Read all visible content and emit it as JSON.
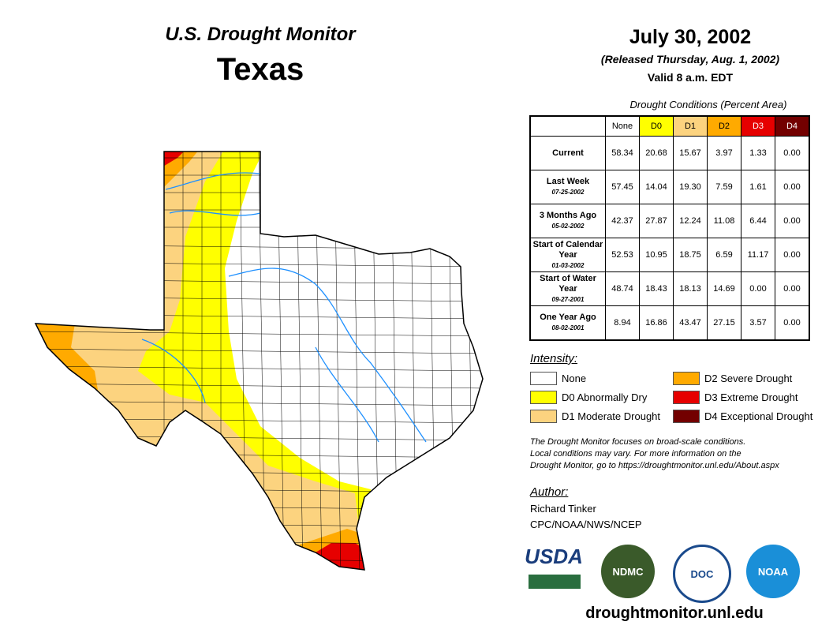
{
  "header": {
    "title": "U.S. Drought Monitor",
    "region": "Texas",
    "date": "July 30, 2002",
    "released": "(Released Thursday, Aug. 1, 2002)",
    "valid": "Valid 8 a.m. EDT"
  },
  "table": {
    "caption": "Drought Conditions (Percent Area)",
    "columns": [
      "None",
      "D0",
      "D1",
      "D2",
      "D3",
      "D4"
    ],
    "rows": [
      {
        "label": "Current",
        "date": "",
        "values": [
          "58.34",
          "20.68",
          "15.67",
          "3.97",
          "1.33",
          "0.00"
        ]
      },
      {
        "label": "Last Week",
        "date": "07-25-2002",
        "values": [
          "57.45",
          "14.04",
          "19.30",
          "7.59",
          "1.61",
          "0.00"
        ]
      },
      {
        "label": "3 Months Ago",
        "date": "05-02-2002",
        "values": [
          "42.37",
          "27.87",
          "12.24",
          "11.08",
          "6.44",
          "0.00"
        ]
      },
      {
        "label": "Start of Calendar Year",
        "date": "01-03-2002",
        "values": [
          "52.53",
          "10.95",
          "18.75",
          "6.59",
          "11.17",
          "0.00"
        ]
      },
      {
        "label": "Start of Water Year",
        "date": "09-27-2001",
        "values": [
          "48.74",
          "18.43",
          "18.13",
          "14.69",
          "0.00",
          "0.00"
        ]
      },
      {
        "label": "One Year Ago",
        "date": "08-02-2001",
        "values": [
          "8.94",
          "16.86",
          "43.47",
          "27.15",
          "3.57",
          "0.00"
        ]
      }
    ]
  },
  "legend": {
    "title": "Intensity:",
    "items": [
      {
        "label": "None",
        "color": "#ffffff"
      },
      {
        "label": "D0 Abnormally Dry",
        "color": "#ffff00"
      },
      {
        "label": "D1 Moderate Drought",
        "color": "#fcd37f"
      },
      {
        "label": "D2 Severe Drought",
        "color": "#ffaa00"
      },
      {
        "label": "D3 Extreme Drought",
        "color": "#e60000"
      },
      {
        "label": "D4 Exceptional Drought",
        "color": "#730000"
      }
    ]
  },
  "note": [
    "The Drought Monitor focuses on broad-scale conditions.",
    "Local conditions may vary. For more information on the",
    "Drought Monitor, go to https://droughtmonitor.unl.edu/About.aspx"
  ],
  "author": {
    "title": "Author:",
    "name": "Richard Tinker",
    "org": "CPC/NOAA/NWS/NCEP"
  },
  "logos": [
    "USDA",
    "NDMC",
    "DOC",
    "NOAA"
  ],
  "url": "droughtmonitor.unl.edu"
}
